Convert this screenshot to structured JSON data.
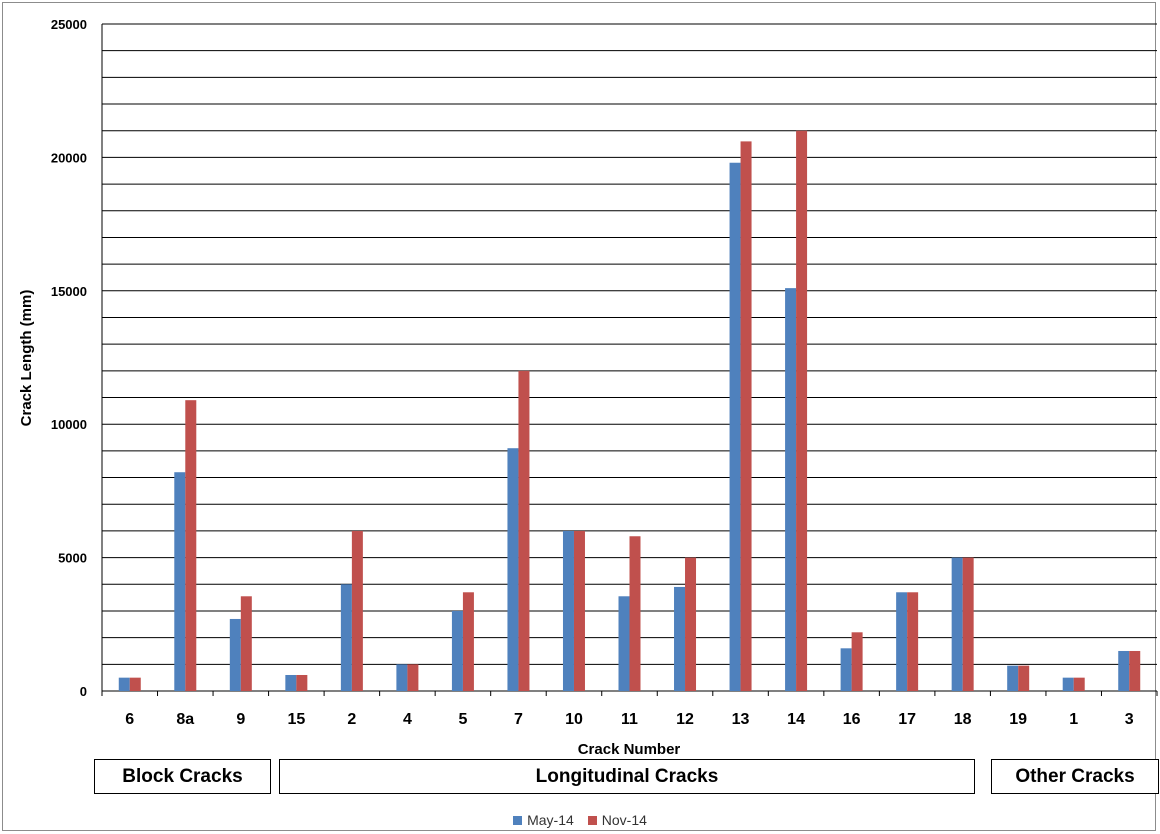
{
  "chart_data": {
    "type": "bar",
    "title": "",
    "xlabel": "Crack Number",
    "ylabel": "Crack Length (mm)",
    "ylim": [
      0,
      25000
    ],
    "yticks": [
      "0",
      "5000",
      "10000",
      "15000",
      "20000",
      "25000"
    ],
    "grid": true,
    "legend_position": "bottom",
    "categories": [
      "6",
      "8a",
      "9",
      "15",
      "2",
      "4",
      "5",
      "7",
      "10",
      "11",
      "12",
      "13",
      "14",
      "16",
      "17",
      "18",
      "19",
      "1",
      "3"
    ],
    "series": [
      {
        "name": "May-14",
        "color": "#4f81bd",
        "values": [
          500,
          8200,
          2700,
          600,
          4000,
          1000,
          3000,
          9100,
          6000,
          3550,
          3900,
          19800,
          15100,
          1600,
          3700,
          5000,
          950,
          500,
          1500
        ]
      },
      {
        "name": "Nov-14",
        "color": "#c0504d",
        "values": [
          500,
          10900,
          3550,
          600,
          6000,
          1000,
          3700,
          12000,
          6000,
          5800,
          5000,
          20600,
          21000,
          2200,
          3700,
          5000,
          950,
          500,
          1500
        ]
      }
    ],
    "groups": [
      {
        "label": "Block Cracks",
        "categories": [
          "6",
          "8a",
          "9"
        ]
      },
      {
        "label": "Longitudinal Cracks",
        "categories": [
          "15",
          "2",
          "4",
          "5",
          "7",
          "10",
          "11",
          "12",
          "13",
          "14",
          "16",
          "17",
          "18"
        ]
      },
      {
        "label": "Other Cracks",
        "categories": [
          "19",
          "1",
          "3"
        ]
      }
    ]
  }
}
